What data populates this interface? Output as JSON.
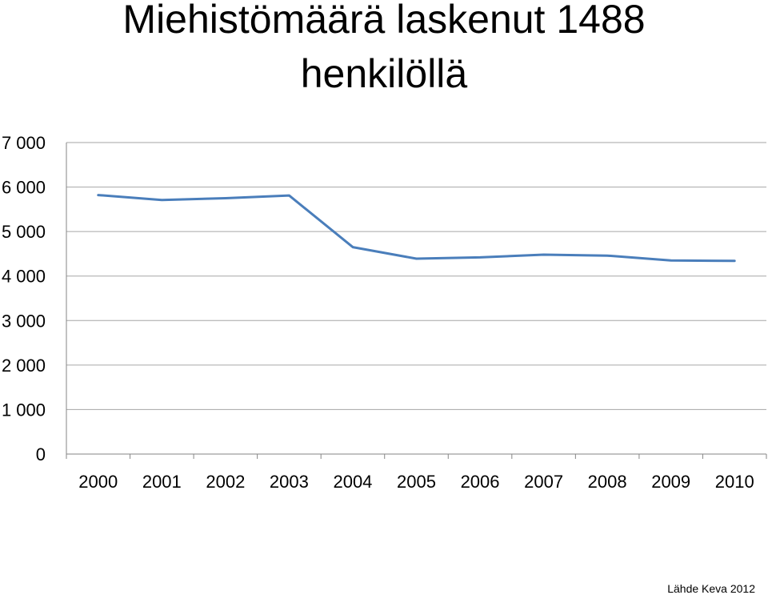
{
  "chart_data": {
    "type": "line",
    "title": "Miehistömäärä laskenut 1488 henkilöllä",
    "title_lines": [
      "Miehistömäärä laskenut 1488",
      "henkilöllä"
    ],
    "x": [
      "2000",
      "2001",
      "2002",
      "2003",
      "2004",
      "2005",
      "2006",
      "2007",
      "2008",
      "2009",
      "2010"
    ],
    "series": [
      {
        "values": [
          5820,
          5710,
          5750,
          5810,
          4650,
          4390,
          4420,
          4480,
          4460,
          4350,
          4340
        ],
        "color": "#4a7ebb"
      }
    ],
    "ylim": [
      0,
      7000
    ],
    "yticks": [
      0,
      1000,
      2000,
      3000,
      4000,
      5000,
      6000,
      7000
    ],
    "ytick_labels": [
      "0",
      "1 000",
      "2 000",
      "3 000",
      "4 000",
      "5 000",
      "6 000",
      "7 000"
    ],
    "grid": true,
    "legend": "none",
    "xlabel": "",
    "ylabel": ""
  },
  "source": "Lähde Keva 2012"
}
